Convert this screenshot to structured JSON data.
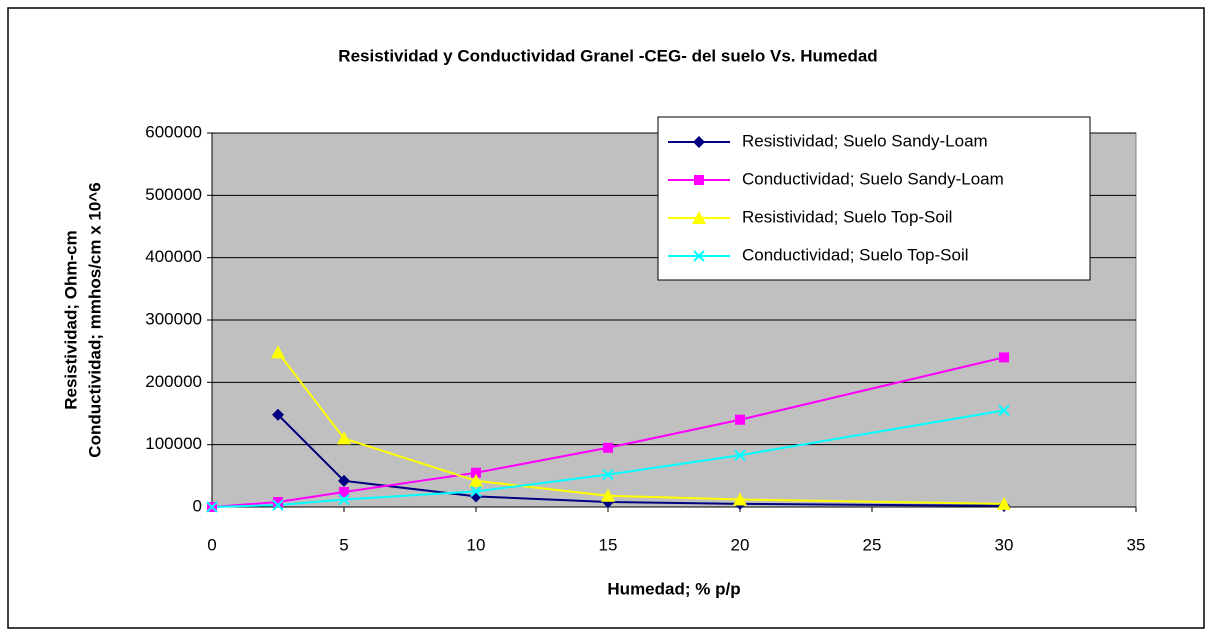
{
  "chart_data": {
    "type": "scatter",
    "title": "Resistividad y Conductividad Granel -CEG- del suelo Vs. Humedad",
    "xlabel": "Humedad; % p/p",
    "ylabel": [
      "Resistividad; Ohm-cm",
      "Conductividad; mmhos/cm x 10^6"
    ],
    "x": [
      0,
      2.5,
      5,
      10,
      15,
      20,
      30
    ],
    "series": [
      {
        "name": "Resistividad; Suelo Sandy-Loam",
        "color": "#000080",
        "marker": "diamond",
        "values": [
          null,
          148000,
          42000,
          17000,
          8000,
          5000,
          2000
        ]
      },
      {
        "name": "Conductividad; Suelo Sandy-Loam",
        "color": "#ff00ff",
        "marker": "square",
        "values": [
          0,
          8000,
          24000,
          55000,
          95000,
          140000,
          240000
        ]
      },
      {
        "name": "Resistividad; Suelo Top-Soil",
        "color": "#ffff00",
        "marker": "triangle",
        "values": [
          null,
          248000,
          110000,
          42000,
          18000,
          12000,
          5000
        ]
      },
      {
        "name": "Conductividad; Suelo Top-Soil",
        "color": "#00ffff",
        "marker": "x",
        "values": [
          0,
          3000,
          12000,
          25000,
          52000,
          83000,
          155000
        ]
      }
    ],
    "xlim": [
      0,
      35
    ],
    "xticks": [
      0,
      5,
      10,
      15,
      20,
      25,
      30,
      35
    ],
    "ylim": [
      0,
      600000
    ],
    "yticks": [
      0,
      100000,
      200000,
      300000,
      400000,
      500000,
      600000
    ],
    "grid": true,
    "legend": "upper right"
  }
}
